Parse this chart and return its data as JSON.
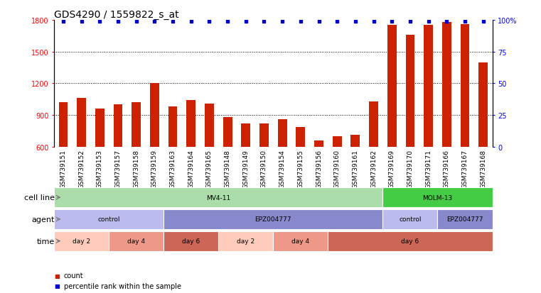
{
  "title": "GDS4290 / 1559822_s_at",
  "samples": [
    "GSM739151",
    "GSM739152",
    "GSM739153",
    "GSM739157",
    "GSM739158",
    "GSM739159",
    "GSM739163",
    "GSM739164",
    "GSM739165",
    "GSM739148",
    "GSM739149",
    "GSM739150",
    "GSM739154",
    "GSM739155",
    "GSM739156",
    "GSM739160",
    "GSM739161",
    "GSM739162",
    "GSM739169",
    "GSM739170",
    "GSM739171",
    "GSM739166",
    "GSM739167",
    "GSM739168"
  ],
  "counts": [
    1020,
    1060,
    960,
    1000,
    1020,
    1200,
    980,
    1040,
    1010,
    880,
    820,
    820,
    860,
    790,
    660,
    700,
    710,
    1030,
    1750,
    1660,
    1750,
    1780,
    1760,
    1400
  ],
  "percentile": [
    99,
    99,
    99,
    99,
    99,
    99,
    99,
    99,
    99,
    99,
    99,
    99,
    99,
    99,
    99,
    99,
    99,
    99,
    99,
    99,
    99,
    99,
    99,
    99
  ],
  "bar_color": "#cc2200",
  "dot_color": "#0000cc",
  "ylim_left": [
    600,
    1800
  ],
  "ylim_right": [
    0,
    100
  ],
  "yticks_left": [
    600,
    900,
    1200,
    1500,
    1800
  ],
  "yticks_right": [
    0,
    25,
    50,
    75,
    100
  ],
  "grid_vals": [
    900,
    1200,
    1500
  ],
  "background_color": "#ffffff",
  "plot_bg": "#ffffff",
  "xtick_bg": "#dddddd",
  "cell_line_row": {
    "label": "cell line",
    "segments": [
      {
        "text": "MV4-11",
        "start": 0,
        "end": 18,
        "color": "#aaddaa"
      },
      {
        "text": "MOLM-13",
        "start": 18,
        "end": 24,
        "color": "#44cc44"
      }
    ]
  },
  "agent_row": {
    "label": "agent",
    "segments": [
      {
        "text": "control",
        "start": 0,
        "end": 6,
        "color": "#bbbbee"
      },
      {
        "text": "EPZ004777",
        "start": 6,
        "end": 18,
        "color": "#8888cc"
      },
      {
        "text": "control",
        "start": 18,
        "end": 21,
        "color": "#bbbbee"
      },
      {
        "text": "EPZ004777",
        "start": 21,
        "end": 24,
        "color": "#8888cc"
      }
    ]
  },
  "time_row": {
    "label": "time",
    "segments": [
      {
        "text": "day 2",
        "start": 0,
        "end": 3,
        "color": "#ffccbb"
      },
      {
        "text": "day 4",
        "start": 3,
        "end": 6,
        "color": "#ee9988"
      },
      {
        "text": "day 6",
        "start": 6,
        "end": 9,
        "color": "#cc6655"
      },
      {
        "text": "day 2",
        "start": 9,
        "end": 12,
        "color": "#ffccbb"
      },
      {
        "text": "day 4",
        "start": 12,
        "end": 15,
        "color": "#ee9988"
      },
      {
        "text": "day 6",
        "start": 15,
        "end": 24,
        "color": "#cc6655"
      }
    ]
  },
  "legend_count_color": "#cc2200",
  "legend_dot_color": "#0000cc",
  "arrow_color": "#777777",
  "title_fontsize": 10,
  "tick_fontsize": 7,
  "label_fontsize": 8,
  "bar_width": 0.5
}
